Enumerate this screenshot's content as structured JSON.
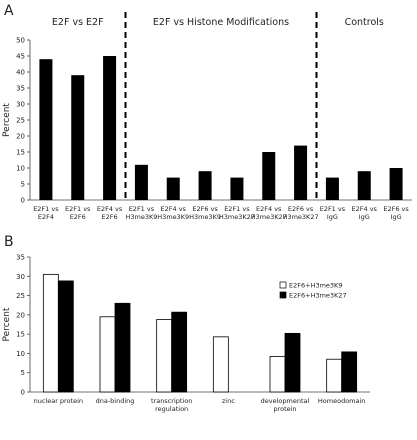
{
  "chart_data": [
    {
      "panel": "A",
      "type": "bar",
      "ylabel": "Percent",
      "ylim": [
        0,
        50
      ],
      "yticks": [
        0,
        5,
        10,
        15,
        20,
        25,
        30,
        35,
        40,
        45,
        50
      ],
      "groups": [
        {
          "label": "E2F vs E2F",
          "start": 0,
          "end": 2
        },
        {
          "label": "E2F vs Histone Modifications",
          "start": 3,
          "end": 8
        },
        {
          "label": "Controls",
          "start": 9,
          "end": 11
        }
      ],
      "categories": [
        [
          "E2F1 vs",
          "E2F4"
        ],
        [
          "E2F1 vs",
          "E2F6"
        ],
        [
          "E2F4 vs",
          "E2F6"
        ],
        [
          "E2F1 vs",
          "H3me3K9"
        ],
        [
          "E2F4 vs",
          "H3me3K9"
        ],
        [
          "E2F6 vs",
          "H3me3K9"
        ],
        [
          "E2F1 vs",
          "H3me3K27"
        ],
        [
          "E2F4 vs",
          "H3me3K27"
        ],
        [
          "E2F6 vs",
          "H3me3K27"
        ],
        [
          "E2F1 vs",
          "IgG"
        ],
        [
          "E2F4 vs",
          "IgG"
        ],
        [
          "E2F6 vs",
          "IgG"
        ]
      ],
      "values": [
        44,
        39,
        45,
        11,
        7,
        9,
        7,
        15,
        17,
        7,
        9,
        10
      ],
      "bar_color": "#000000",
      "separator_style": "dashed"
    },
    {
      "panel": "B",
      "type": "bar",
      "ylabel": "Percent",
      "ylim": [
        0,
        35
      ],
      "yticks": [
        0,
        5,
        10,
        15,
        20,
        25,
        30,
        35
      ],
      "categories": [
        [
          "nuclear protein"
        ],
        [
          "dna-binding"
        ],
        [
          "transcription",
          "regulation"
        ],
        [
          "zinc"
        ],
        [
          "developmental",
          "protein"
        ],
        [
          "Homeodomain"
        ]
      ],
      "series": [
        {
          "name": "E2F6+H3me3K9",
          "color": "#ffffff",
          "values": [
            30.5,
            19.5,
            18.8,
            14.3,
            9.2,
            8.5
          ]
        },
        {
          "name": "E2F6+H3me3K27",
          "color": "#000000",
          "values": [
            28.8,
            23,
            20.7,
            null,
            15.2,
            10.4
          ]
        }
      ],
      "legend_position": "top-right"
    }
  ]
}
